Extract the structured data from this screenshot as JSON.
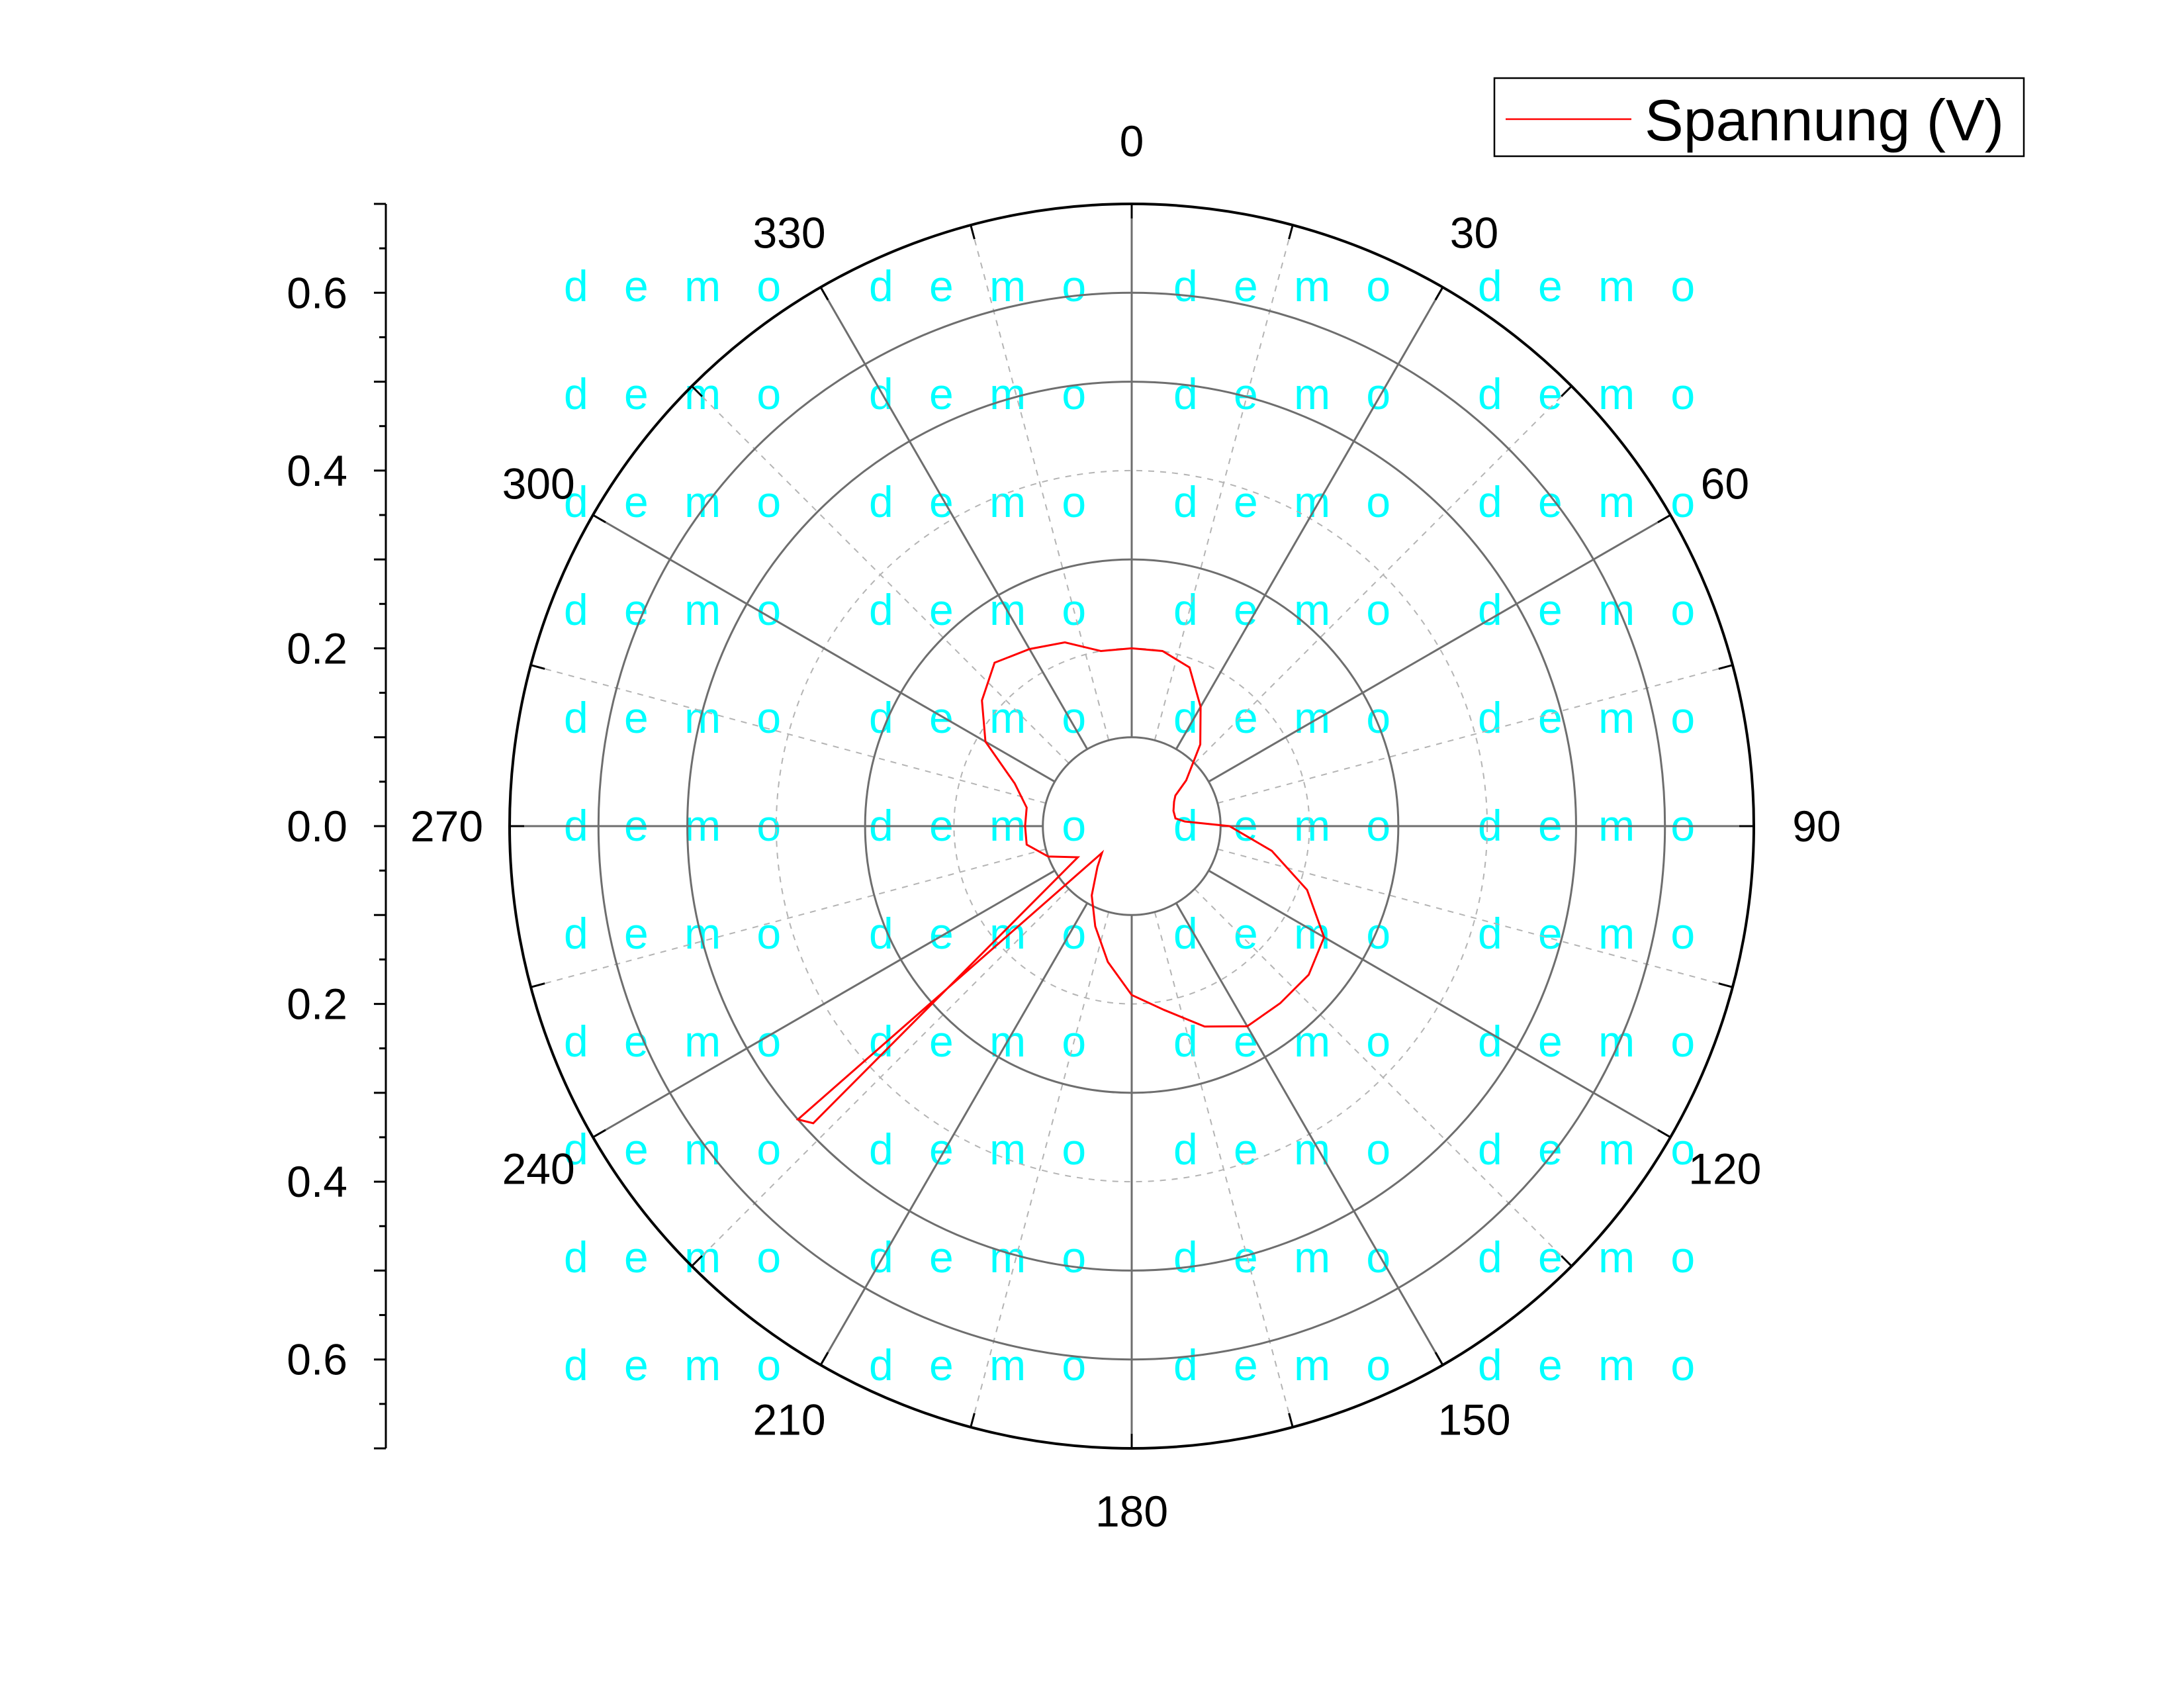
{
  "chart_data": {
    "type": "polar-line",
    "title": "",
    "angle_unit": "degrees",
    "angle_zero": "top",
    "angle_direction": "clockwise",
    "angle_ticks": [
      "0",
      "30",
      "60",
      "90",
      "120",
      "150",
      "180",
      "210",
      "240",
      "270",
      "300",
      "330"
    ],
    "r_axis": {
      "range": [
        0,
        0.7
      ],
      "inner_hole": 0.1,
      "major_circles": [
        0.1,
        0.3,
        0.5,
        0.6
      ],
      "minor_circles": [
        0.2,
        0.4,
        0.6
      ],
      "major_spokes_deg": [
        0,
        30,
        60,
        90,
        120,
        150,
        180,
        210,
        240,
        270,
        300,
        330
      ],
      "minor_spokes_deg": [
        15,
        45,
        75,
        105,
        135,
        165,
        195,
        225,
        255,
        285,
        315,
        345
      ],
      "tick_labels_upper": [
        "0.6",
        "0.4",
        "0.2",
        "0.0"
      ],
      "tick_labels_lower": [
        "0.2",
        "0.4",
        "0.6"
      ]
    },
    "grid": true,
    "legend": {
      "position": "top-right",
      "entries": [
        "Spannung (V)"
      ]
    },
    "series": [
      {
        "name": "Spannung (V)",
        "color": "#ff0000",
        "points": [
          {
            "theta": 0,
            "r": 0.2
          },
          {
            "theta": 10,
            "r": 0.2
          },
          {
            "theta": 20,
            "r": 0.19
          },
          {
            "theta": 30,
            "r": 0.155
          },
          {
            "theta": 40,
            "r": 0.12
          },
          {
            "theta": 50,
            "r": 0.08
          },
          {
            "theta": 55,
            "r": 0.06
          },
          {
            "theta": 60,
            "r": 0.055
          },
          {
            "theta": 70,
            "r": 0.05
          },
          {
            "theta": 80,
            "r": 0.05
          },
          {
            "theta": 85,
            "r": 0.06
          },
          {
            "theta": 90,
            "r": 0.11
          },
          {
            "theta": 100,
            "r": 0.16
          },
          {
            "theta": 110,
            "r": 0.21
          },
          {
            "theta": 120,
            "r": 0.25
          },
          {
            "theta": 130,
            "r": 0.26
          },
          {
            "theta": 140,
            "r": 0.26
          },
          {
            "theta": 150,
            "r": 0.26
          },
          {
            "theta": 160,
            "r": 0.24
          },
          {
            "theta": 170,
            "r": 0.21
          },
          {
            "theta": 180,
            "r": 0.19
          },
          {
            "theta": 190,
            "r": 0.155
          },
          {
            "theta": 200,
            "r": 0.12
          },
          {
            "theta": 210,
            "r": 0.09
          },
          {
            "theta": 220,
            "r": 0.06
          },
          {
            "theta": 228,
            "r": 0.045
          },
          {
            "theta": 228.7,
            "r": 0.5
          },
          {
            "theta": 227,
            "r": 0.49
          },
          {
            "theta": 240,
            "r": 0.07
          },
          {
            "theta": 250,
            "r": 0.1
          },
          {
            "theta": 260,
            "r": 0.12
          },
          {
            "theta": 270,
            "r": 0.12
          },
          {
            "theta": 280,
            "r": 0.12
          },
          {
            "theta": 290,
            "r": 0.14
          },
          {
            "theta": 300,
            "r": 0.19
          },
          {
            "theta": 310,
            "r": 0.22
          },
          {
            "theta": 320,
            "r": 0.24
          },
          {
            "theta": 330,
            "r": 0.23
          },
          {
            "theta": 340,
            "r": 0.22
          },
          {
            "theta": 350,
            "r": 0.2
          },
          {
            "theta": 360,
            "r": 0.2
          }
        ]
      }
    ]
  },
  "watermark": {
    "text": "d e m o",
    "color": "#00ffff"
  }
}
